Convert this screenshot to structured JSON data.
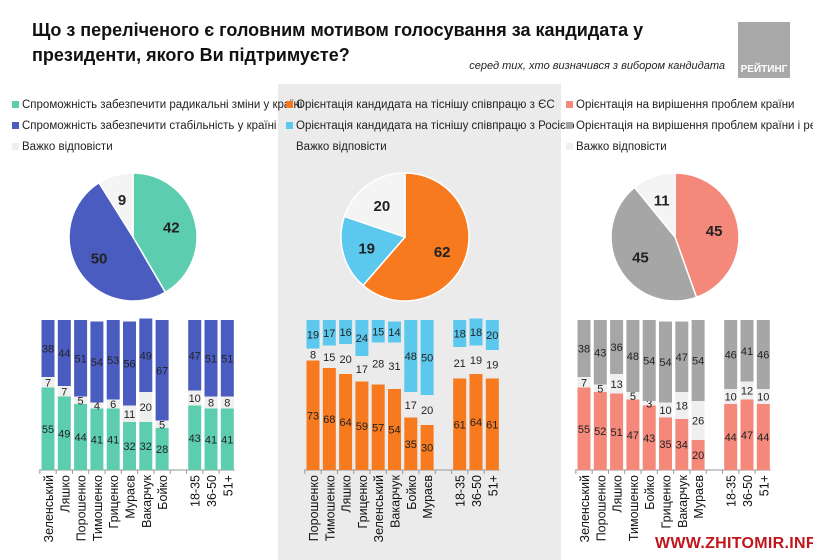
{
  "title": "Що з переліченого є головним мотивом голосування за кандидата у президенти, якого Ви підтримуєте?",
  "subtitle": "серед тих, хто визначився з вибором кандидата",
  "logo_text": "РЕЙТИНГ",
  "watermark": "WWW.ZHITOMIR.INFO",
  "chart_data": [
    {
      "type": "pie+stacked-bar",
      "legend": [
        {
          "label": "Спроможність забезпечити радикальні зміни у країні",
          "color": "#5dcdb0"
        },
        {
          "label": "Спроможність забезпечити стабільність у країні",
          "color": "#4a5cc0"
        },
        {
          "label": "Важко відповісти",
          "color": "#efefef"
        }
      ],
      "pie": [
        42,
        50,
        9
      ],
      "categories": [
        "Зеленський",
        "Ляшко",
        "Порошенко",
        "Тимошенко",
        "Гриценко",
        "Мураєв",
        "Вакарчук",
        "Бойко",
        "",
        "18-35",
        "36-50",
        "51+"
      ],
      "series": [
        {
          "name": "Спроможність забезпечити радикальні зміни у країні",
          "values": [
            55,
            49,
            44,
            41,
            41,
            32,
            32,
            28,
            null,
            43,
            41,
            41
          ]
        },
        {
          "name": "Важко відповісти",
          "values": [
            7,
            7,
            5,
            4,
            6,
            11,
            20,
            5,
            null,
            10,
            8,
            8
          ]
        },
        {
          "name": "Спроможність забезпечити стабільність у країні",
          "values": [
            38,
            44,
            51,
            54,
            53,
            56,
            49,
            67,
            null,
            47,
            51,
            51
          ]
        }
      ]
    },
    {
      "type": "pie+stacked-bar",
      "legend": [
        {
          "label": "Орієнтація кандидата на тіснішу співпрацю з ЄС",
          "color": "#f77a1e"
        },
        {
          "label": "Орієнтація кандидата на тіснішу співпрацю з Росією",
          "color": "#5cc8ee"
        },
        {
          "label": "Важко відповісти",
          "color": "#ebebeb"
        }
      ],
      "pie": [
        62,
        19,
        20
      ],
      "categories": [
        "Порошенко",
        "Тимошенко",
        "Ляшко",
        "Гриценко",
        "Зеленський",
        "Вакарчук",
        "Бойко",
        "Мураєв",
        "",
        "18-35",
        "36-50",
        "51+"
      ],
      "series": [
        {
          "name": "Орієнтація кандидата на тіснішу співпрацю з ЄС",
          "values": [
            73,
            68,
            64,
            59,
            57,
            54,
            35,
            30,
            null,
            61,
            64,
            61
          ]
        },
        {
          "name": "Важко відповісти",
          "values": [
            8,
            15,
            20,
            17,
            28,
            31,
            17,
            20,
            null,
            21,
            19,
            19
          ]
        },
        {
          "name": "Орієнтація кандидата на тіснішу співпрацю з Росією",
          "values": [
            19,
            17,
            16,
            24,
            15,
            14,
            48,
            50,
            null,
            18,
            18,
            20
          ]
        }
      ]
    },
    {
      "type": "pie+stacked-bar",
      "legend": [
        {
          "label": "Орієнтація на вирішення проблем країни",
          "color": "#f4887a"
        },
        {
          "label": "Орієнтація на вирішення проблем країни і регіону",
          "color": "#a6a6a6"
        },
        {
          "label": "Важко відповісти",
          "color": "#efefef"
        }
      ],
      "pie": [
        45,
        45,
        11
      ],
      "categories": [
        "Зеленський",
        "Порошенко",
        "Ляшко",
        "Тимошенко",
        "Бойко",
        "Гриценко",
        "Вакарчук",
        "Мураєв",
        "",
        "18-35",
        "36-50",
        "51+"
      ],
      "series": [
        {
          "name": "Орієнтація на вирішення проблем країни",
          "values": [
            55,
            52,
            51,
            47,
            43,
            35,
            34,
            20,
            null,
            44,
            47,
            44
          ]
        },
        {
          "name": "Важко відповісти",
          "values": [
            7,
            5,
            13,
            5,
            3,
            10,
            18,
            26,
            null,
            10,
            12,
            10
          ]
        },
        {
          "name": "Орієнтація на вирішення проблем країни і регіону",
          "values": [
            38,
            43,
            36,
            48,
            54,
            54,
            47,
            54,
            null,
            46,
            41,
            46
          ]
        }
      ]
    }
  ]
}
